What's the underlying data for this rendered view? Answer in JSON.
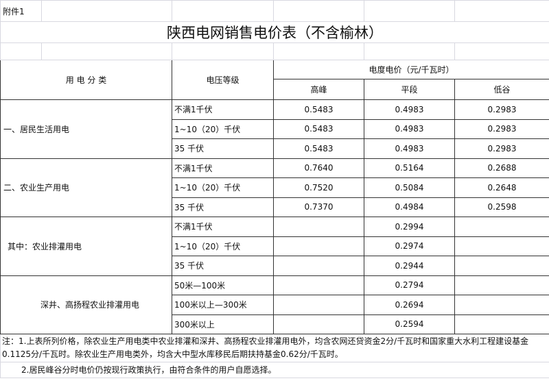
{
  "attachment_label": "附件1",
  "title": "陕西电网销售电价表（不含榆林）",
  "header": {
    "category": "用 电 分 类",
    "voltage": "电压等级",
    "price_group": "电度电价（元/千瓦时）",
    "peak": "高峰",
    "flat": "平段",
    "valley": "低谷"
  },
  "groups": [
    {
      "name": "一、居民生活用电",
      "rows": [
        {
          "voltage": "不满1千伏",
          "peak": "0.5483",
          "flat": "0.4983",
          "valley": "0.2983"
        },
        {
          "voltage": "1~10（20）千伏",
          "peak": "0.5483",
          "flat": "0.4983",
          "valley": "0.2983"
        },
        {
          "voltage": "35 千伏",
          "peak": "0.5483",
          "flat": "0.4983",
          "valley": "0.2983"
        }
      ]
    },
    {
      "name": "二、农业生产用电",
      "rows": [
        {
          "voltage": "不满1千伏",
          "peak": "0.7640",
          "flat": "0.5164",
          "valley": "0.2688"
        },
        {
          "voltage": "1~10（20）千伏",
          "peak": "0.7520",
          "flat": "0.5084",
          "valley": "0.2648"
        },
        {
          "voltage": "35 千伏",
          "peak": "0.7370",
          "flat": "0.4984",
          "valley": "0.2598"
        }
      ]
    },
    {
      "name": "其中：农业排灌用电",
      "rows": [
        {
          "voltage": "不满1千伏",
          "flat": "0.2994"
        },
        {
          "voltage": "1~10（20）千伏",
          "flat": "0.2974"
        },
        {
          "voltage": "35 千伏",
          "flat": "0.2944"
        }
      ]
    },
    {
      "name": "深井、高扬程农业排灌用电",
      "rows": [
        {
          "voltage": "50米—100米",
          "flat": "0.2794"
        },
        {
          "voltage": "100米以上—300米",
          "flat": "0.2694"
        },
        {
          "voltage": "300米以上",
          "flat": "0.2594"
        }
      ]
    }
  ],
  "notes": [
    "注：1.上表所列价格，除农业生产用电类中农业排灌和深井、高扬程农业排灌用电外，均含农网还贷资金2分/千瓦时和国家重大水利工程建设基金0.1125分/千瓦时。除农业生产用电类外，均含大中型水库移民后期扶持基金0.62分/千瓦时。",
    "2.居民峰谷分时电价仍按现行政策执行，由符合条件的用户自愿选择。"
  ]
}
